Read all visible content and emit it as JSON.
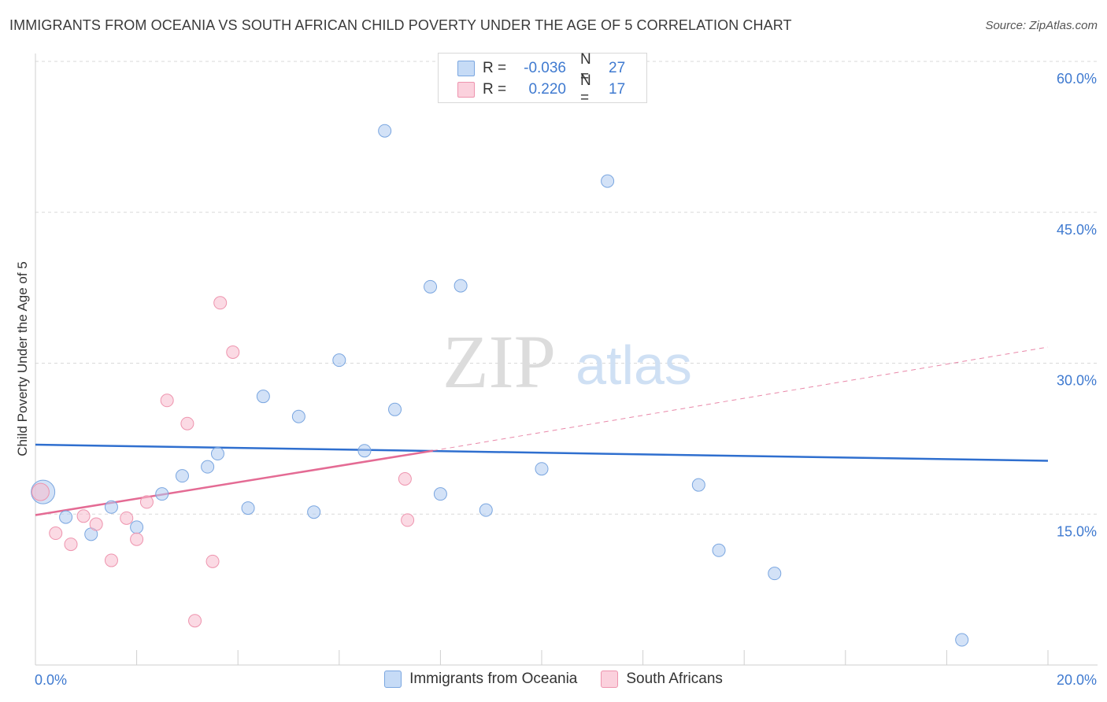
{
  "title": "IMMIGRANTS FROM OCEANIA VS SOUTH AFRICAN CHILD POVERTY UNDER THE AGE OF 5 CORRELATION CHART",
  "source": "Source: ZipAtlas.com",
  "watermark": {
    "zip": "ZIP",
    "atlas": "atlas"
  },
  "legend": {
    "rows": [
      {
        "r_label": "R =",
        "r_value": "-0.036",
        "n_label": "N =",
        "n_value": "27",
        "color": "#aecbf1"
      },
      {
        "r_label": "R =",
        "r_value": "0.220",
        "n_label": "N =",
        "n_value": "17",
        "color": "#f8bccd"
      }
    ]
  },
  "bottom_legend": [
    "Immigrants from Oceania",
    "South Africans"
  ],
  "colors": {
    "blue_fill": "#aecbf1",
    "blue_stroke": "#7aa6e0",
    "blue_line": "#2f6fcf",
    "pink_fill": "#f8bccd",
    "pink_stroke": "#ee94ae",
    "pink_line": "#e46b94",
    "tick_text": "#3f7ad0"
  },
  "chart_data": {
    "type": "scatter",
    "title": "IMMIGRANTS FROM OCEANIA VS SOUTH AFRICAN CHILD POVERTY UNDER THE AGE OF 5 CORRELATION CHART",
    "xlabel": "",
    "ylabel": "Child Poverty Under the Age of 5",
    "xlim": [
      0,
      20
    ],
    "ylim": [
      0,
      60
    ],
    "x_tick_labels": [
      "0.0%",
      "20.0%"
    ],
    "y_ticks": [
      15,
      30,
      45,
      60
    ],
    "y_tick_labels": [
      "15.0%",
      "30.0%",
      "45.0%",
      "60.0%"
    ],
    "grid": true,
    "series": [
      {
        "name": "Immigrants from Oceania",
        "points": [
          [
            0.15,
            17.2
          ],
          [
            0.6,
            14.7
          ],
          [
            1.1,
            13.0
          ],
          [
            1.5,
            15.7
          ],
          [
            2.0,
            13.7
          ],
          [
            2.5,
            17.0
          ],
          [
            2.9,
            18.8
          ],
          [
            3.4,
            19.7
          ],
          [
            3.6,
            21.0
          ],
          [
            4.2,
            15.6
          ],
          [
            4.5,
            26.7
          ],
          [
            5.2,
            24.7
          ],
          [
            5.5,
            15.2
          ],
          [
            6.0,
            30.3
          ],
          [
            6.5,
            21.3
          ],
          [
            6.9,
            53.1
          ],
          [
            7.1,
            25.4
          ],
          [
            7.8,
            37.6
          ],
          [
            8.0,
            17.0
          ],
          [
            8.4,
            37.7
          ],
          [
            8.9,
            15.4
          ],
          [
            10.0,
            19.5
          ],
          [
            11.3,
            48.1
          ],
          [
            13.1,
            17.9
          ],
          [
            13.5,
            11.4
          ],
          [
            14.6,
            9.1
          ],
          [
            18.3,
            2.5
          ]
        ],
        "trend": {
          "x": [
            0,
            20
          ],
          "y": [
            21.9,
            20.3
          ]
        }
      },
      {
        "name": "South Africans",
        "points": [
          [
            0.1,
            17.2
          ],
          [
            0.4,
            13.1
          ],
          [
            0.7,
            12.0
          ],
          [
            0.95,
            14.8
          ],
          [
            1.2,
            14.0
          ],
          [
            1.5,
            10.4
          ],
          [
            1.8,
            14.6
          ],
          [
            2.0,
            12.5
          ],
          [
            2.2,
            16.2
          ],
          [
            2.6,
            26.3
          ],
          [
            3.0,
            24.0
          ],
          [
            3.15,
            4.4
          ],
          [
            3.5,
            10.3
          ],
          [
            3.65,
            36.0
          ],
          [
            3.9,
            31.1
          ],
          [
            7.3,
            18.5
          ],
          [
            7.35,
            14.4
          ]
        ],
        "trend": {
          "x": [
            0,
            7.85
          ],
          "y": [
            14.9,
            21.3
          ]
        },
        "trend_extension": {
          "x": [
            7.85,
            20
          ],
          "y": [
            21.3,
            31.6
          ]
        }
      }
    ]
  }
}
